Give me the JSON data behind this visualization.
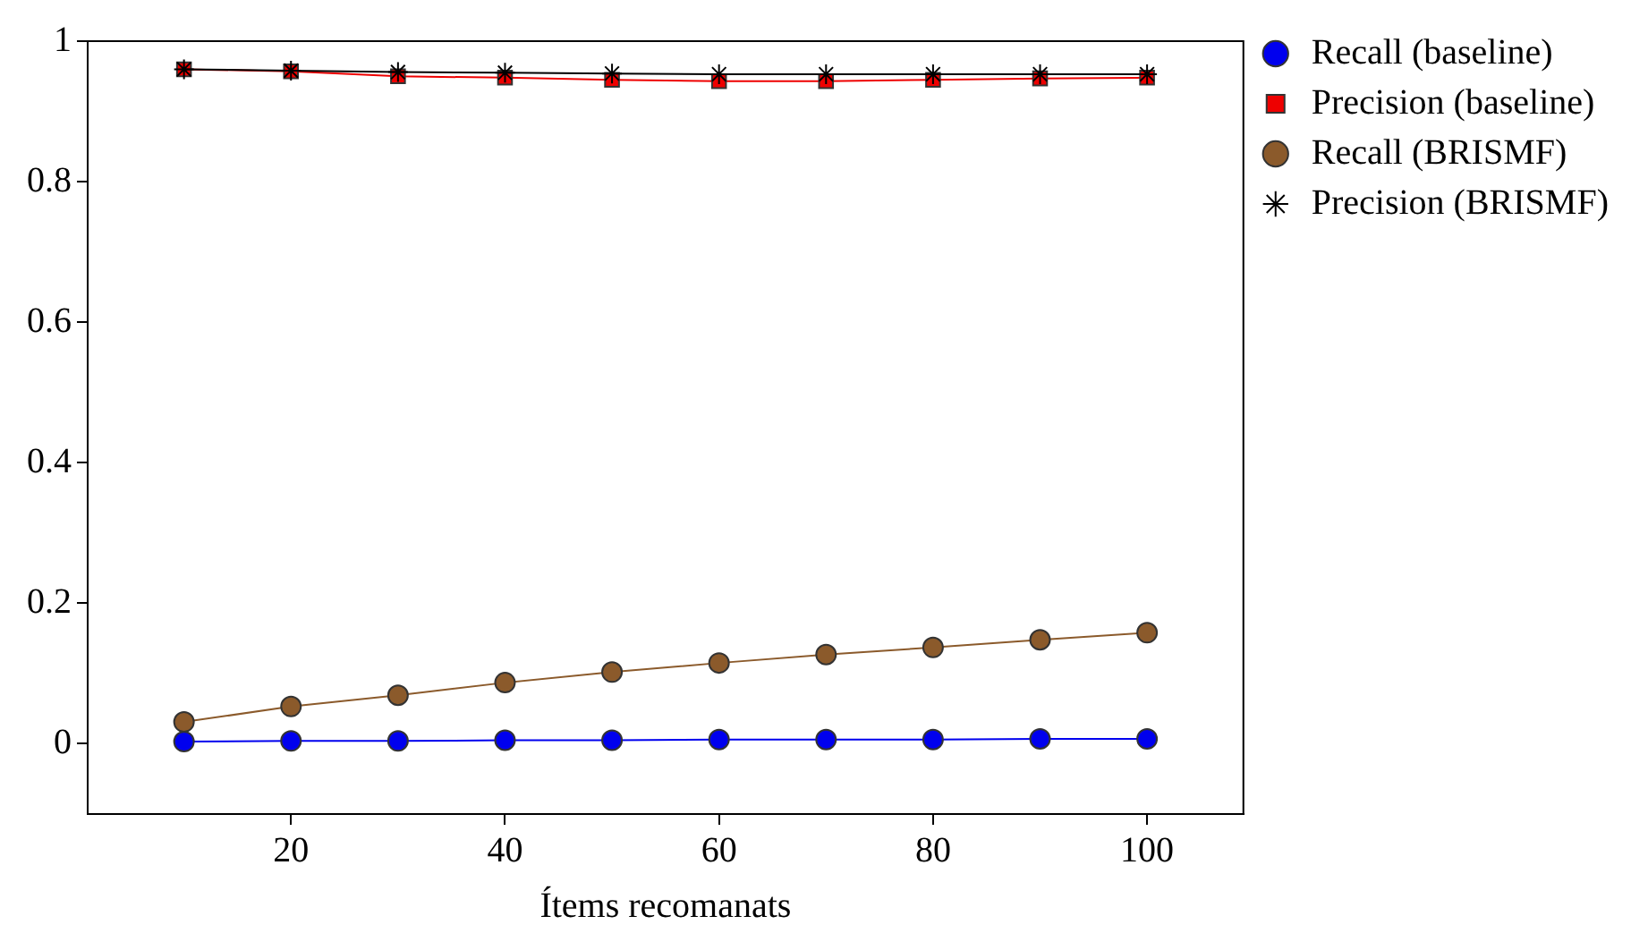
{
  "chart_data": {
    "type": "line",
    "xlabel": "Ítems recomanats",
    "x": [
      10,
      20,
      30,
      40,
      50,
      60,
      70,
      80,
      90,
      100
    ],
    "xlim": [
      1,
      109
    ],
    "xticks": [
      20,
      40,
      60,
      80,
      100
    ],
    "ylim": [
      -0.1,
      1
    ],
    "yticks": [
      0,
      0.2,
      0.4,
      0.6,
      0.8,
      1
    ],
    "grid": false,
    "legend": "right",
    "line_style": "solid",
    "series": [
      {
        "name": "Recall (baseline)",
        "color": "#0000ee",
        "marker": "circle",
        "values": [
          0.003,
          0.004,
          0.004,
          0.005,
          0.005,
          0.006,
          0.006,
          0.006,
          0.007,
          0.007
        ]
      },
      {
        "name": "Precision (baseline)",
        "color": "#ee0000",
        "marker": "square",
        "values": [
          0.96,
          0.957,
          0.95,
          0.948,
          0.945,
          0.943,
          0.943,
          0.945,
          0.947,
          0.948
        ]
      },
      {
        "name": "Recall (BRISMF)",
        "color": "#8b5a2b",
        "marker": "circle",
        "values": [
          0.031,
          0.053,
          0.069,
          0.087,
          0.102,
          0.115,
          0.127,
          0.137,
          0.148,
          0.158
        ]
      },
      {
        "name": "Precision (BRISMF)",
        "color": "#000000",
        "marker": "cross",
        "values": [
          0.96,
          0.958,
          0.956,
          0.955,
          0.954,
          0.953,
          0.953,
          0.953,
          0.953,
          0.953
        ]
      }
    ]
  }
}
